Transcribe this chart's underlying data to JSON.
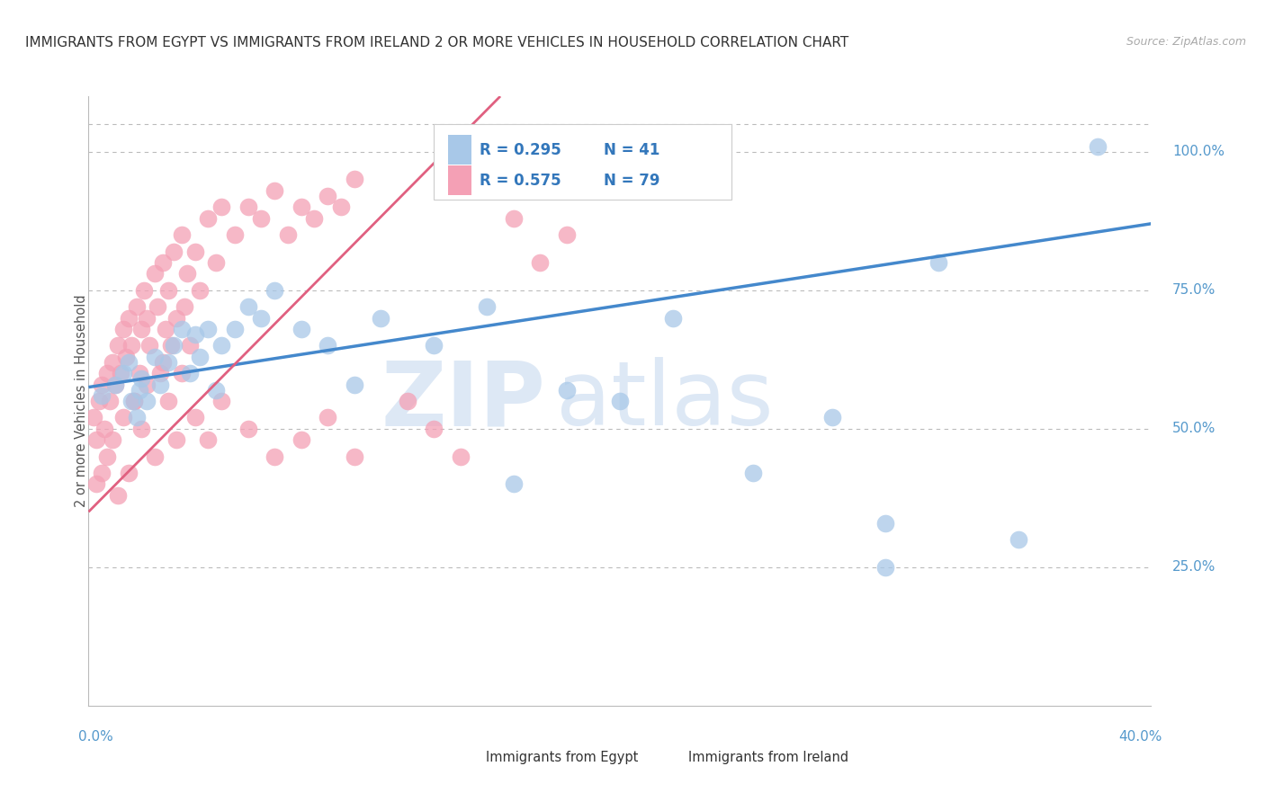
{
  "title": "IMMIGRANTS FROM EGYPT VS IMMIGRANTS FROM IRELAND 2 OR MORE VEHICLES IN HOUSEHOLD CORRELATION CHART",
  "source": "Source: ZipAtlas.com",
  "ylabel_label": "2 or more Vehicles in Household",
  "legend_blue_label": "Immigrants from Egypt",
  "legend_pink_label": "Immigrants from Ireland",
  "R_blue": 0.295,
  "N_blue": 41,
  "R_pink": 0.575,
  "N_pink": 79,
  "blue_color": "#a8c8e8",
  "pink_color": "#f4a0b5",
  "blue_line_color": "#4488cc",
  "pink_line_color": "#e06080",
  "title_color": "#333333",
  "axis_label_color": "#5599cc",
  "legend_text_color": "#3377bb",
  "watermark_zip": "ZIP",
  "watermark_atlas": "atlas",
  "watermark_color": "#dde8f5",
  "xlim": [
    0.0,
    0.4
  ],
  "ylim": [
    0.0,
    1.1
  ],
  "blue_line_x0": 0.0,
  "blue_line_y0": 0.575,
  "blue_line_x1": 0.4,
  "blue_line_y1": 0.87,
  "pink_line_x0": 0.0,
  "pink_line_y0": 0.35,
  "pink_line_x1": 0.155,
  "pink_line_y1": 1.1,
  "blue_x": [
    0.005,
    0.01,
    0.013,
    0.015,
    0.016,
    0.018,
    0.019,
    0.02,
    0.022,
    0.025,
    0.027,
    0.03,
    0.032,
    0.035,
    0.038,
    0.04,
    0.042,
    0.045,
    0.048,
    0.05,
    0.055,
    0.06,
    0.065,
    0.07,
    0.08,
    0.09,
    0.1,
    0.11,
    0.13,
    0.15,
    0.16,
    0.18,
    0.2,
    0.22,
    0.25,
    0.28,
    0.3,
    0.32,
    0.35,
    0.3,
    0.38
  ],
  "blue_y": [
    0.56,
    0.58,
    0.6,
    0.62,
    0.55,
    0.52,
    0.57,
    0.59,
    0.55,
    0.63,
    0.58,
    0.62,
    0.65,
    0.68,
    0.6,
    0.67,
    0.63,
    0.68,
    0.57,
    0.65,
    0.68,
    0.72,
    0.7,
    0.75,
    0.68,
    0.65,
    0.58,
    0.7,
    0.65,
    0.72,
    0.4,
    0.57,
    0.55,
    0.7,
    0.42,
    0.52,
    0.33,
    0.8,
    0.3,
    0.25,
    1.01
  ],
  "pink_x": [
    0.002,
    0.003,
    0.004,
    0.005,
    0.006,
    0.007,
    0.008,
    0.009,
    0.01,
    0.011,
    0.012,
    0.013,
    0.014,
    0.015,
    0.016,
    0.017,
    0.018,
    0.019,
    0.02,
    0.021,
    0.022,
    0.023,
    0.025,
    0.026,
    0.027,
    0.028,
    0.029,
    0.03,
    0.031,
    0.032,
    0.033,
    0.035,
    0.036,
    0.037,
    0.038,
    0.04,
    0.042,
    0.045,
    0.048,
    0.05,
    0.055,
    0.06,
    0.065,
    0.07,
    0.075,
    0.08,
    0.085,
    0.09,
    0.095,
    0.1,
    0.003,
    0.005,
    0.007,
    0.009,
    0.011,
    0.013,
    0.015,
    0.017,
    0.02,
    0.022,
    0.025,
    0.028,
    0.03,
    0.033,
    0.035,
    0.04,
    0.045,
    0.05,
    0.06,
    0.07,
    0.08,
    0.09,
    0.1,
    0.12,
    0.13,
    0.14,
    0.16,
    0.17,
    0.18
  ],
  "pink_y": [
    0.52,
    0.48,
    0.55,
    0.58,
    0.5,
    0.6,
    0.55,
    0.62,
    0.58,
    0.65,
    0.6,
    0.68,
    0.63,
    0.7,
    0.65,
    0.55,
    0.72,
    0.6,
    0.68,
    0.75,
    0.7,
    0.65,
    0.78,
    0.72,
    0.6,
    0.8,
    0.68,
    0.75,
    0.65,
    0.82,
    0.7,
    0.85,
    0.72,
    0.78,
    0.65,
    0.82,
    0.75,
    0.88,
    0.8,
    0.9,
    0.85,
    0.9,
    0.88,
    0.93,
    0.85,
    0.9,
    0.88,
    0.92,
    0.9,
    0.95,
    0.4,
    0.42,
    0.45,
    0.48,
    0.38,
    0.52,
    0.42,
    0.55,
    0.5,
    0.58,
    0.45,
    0.62,
    0.55,
    0.48,
    0.6,
    0.52,
    0.48,
    0.55,
    0.5,
    0.45,
    0.48,
    0.52,
    0.45,
    0.55,
    0.5,
    0.45,
    0.88,
    0.8,
    0.85
  ]
}
